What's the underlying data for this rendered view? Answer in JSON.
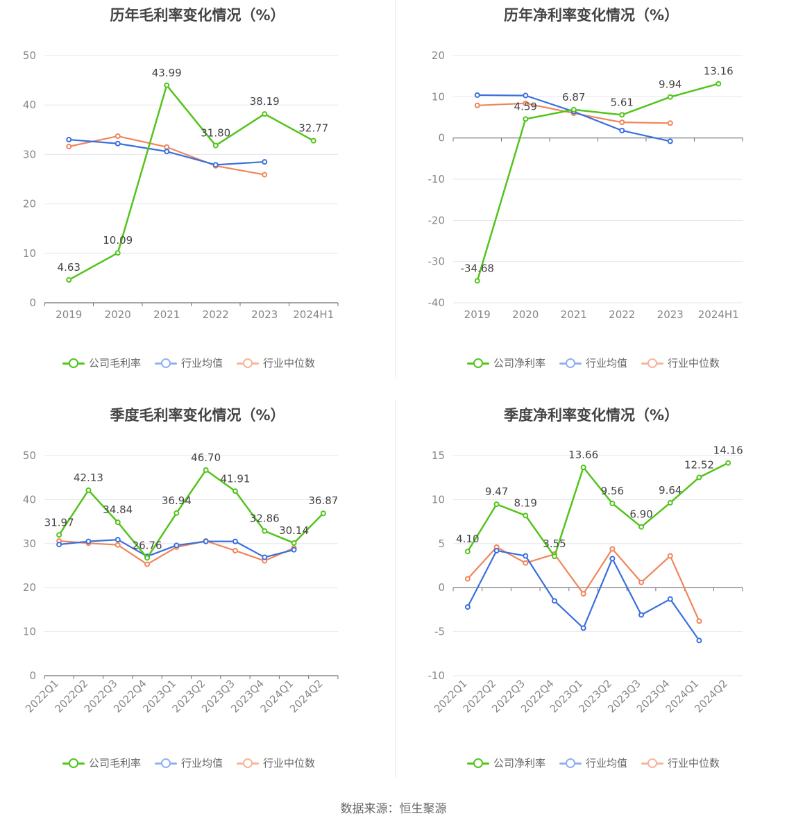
{
  "footer": "数据来源：恒生聚源",
  "colors": {
    "company": "#52c41a",
    "avg": "#3a6fdc",
    "median": "#f0855a"
  },
  "chart_data": [
    {
      "type": "line",
      "title": "历年毛利率变化情况（%）",
      "categories": [
        "2019",
        "2020",
        "2021",
        "2022",
        "2023",
        "2024H1"
      ],
      "ylim": [
        0,
        50
      ],
      "yticks": [
        0,
        10,
        20,
        30,
        40,
        50
      ],
      "series": [
        {
          "name": "公司毛利率",
          "values": [
            4.63,
            10.09,
            43.99,
            31.8,
            38.19,
            32.77
          ],
          "labels": [
            "4.63",
            "10.09",
            "43.99",
            "31.80",
            "38.19",
            "32.77"
          ]
        },
        {
          "name": "行业均值",
          "values": [
            33.0,
            32.2,
            30.6,
            27.9,
            28.5,
            null
          ]
        },
        {
          "name": "行业中位数",
          "values": [
            31.6,
            33.7,
            31.5,
            27.7,
            25.9,
            null
          ]
        }
      ]
    },
    {
      "type": "line",
      "title": "历年净利率变化情况（%）",
      "categories": [
        "2019",
        "2020",
        "2021",
        "2022",
        "2023",
        "2024H1"
      ],
      "ylim": [
        -40,
        20
      ],
      "yticks": [
        -40,
        -30,
        -20,
        -10,
        0,
        10,
        20
      ],
      "series": [
        {
          "name": "公司净利率",
          "values": [
            -34.68,
            4.59,
            6.87,
            5.61,
            9.94,
            13.16
          ],
          "labels": [
            "-34.68",
            "4.59",
            "6.87",
            "5.61",
            "9.94",
            "13.16"
          ]
        },
        {
          "name": "行业均值",
          "values": [
            10.4,
            10.3,
            6.4,
            1.8,
            -0.8,
            null
          ]
        },
        {
          "name": "行业中位数",
          "values": [
            7.9,
            8.4,
            6.0,
            3.8,
            3.6,
            null
          ]
        }
      ]
    },
    {
      "type": "line",
      "title": "季度毛利率变化情况（%）",
      "categories": [
        "2022Q1",
        "2022Q2",
        "2022Q3",
        "2022Q4",
        "2023Q1",
        "2023Q2",
        "2023Q3",
        "2023Q4",
        "2024Q1",
        "2024Q2"
      ],
      "ylim": [
        0,
        50
      ],
      "yticks": [
        0,
        10,
        20,
        30,
        40,
        50
      ],
      "series": [
        {
          "name": "公司毛利率",
          "values": [
            31.97,
            42.13,
            34.84,
            26.76,
            36.94,
            46.7,
            41.91,
            32.86,
            30.14,
            36.87
          ],
          "labels": [
            "31.97",
            "42.13",
            "34.84",
            "26.76",
            "36.94",
            "46.70",
            "41.91",
            "32.86",
            "30.14",
            "36.87"
          ]
        },
        {
          "name": "行业均值",
          "values": [
            29.8,
            30.5,
            30.9,
            27.1,
            29.6,
            30.5,
            30.5,
            26.9,
            28.6,
            null
          ]
        },
        {
          "name": "行业中位数",
          "values": [
            30.6,
            30.1,
            29.7,
            25.3,
            29.2,
            30.6,
            28.4,
            26.1,
            29.0,
            null
          ]
        }
      ]
    },
    {
      "type": "line",
      "title": "季度净利率变化情况（%）",
      "categories": [
        "2022Q1",
        "2022Q2",
        "2022Q3",
        "2022Q4",
        "2023Q1",
        "2023Q2",
        "2023Q3",
        "2023Q4",
        "2024Q1",
        "2024Q2"
      ],
      "ylim": [
        -10,
        15
      ],
      "yticks": [
        -10,
        -5,
        0,
        5,
        10,
        15
      ],
      "series": [
        {
          "name": "公司净利率",
          "values": [
            4.1,
            9.47,
            8.19,
            3.55,
            13.66,
            9.56,
            6.9,
            9.64,
            12.52,
            14.16
          ],
          "labels": [
            "4.10",
            "9.47",
            "8.19",
            "3.55",
            "13.66",
            "9.56",
            "6.90",
            "9.64",
            "12.52",
            "14.16"
          ]
        },
        {
          "name": "行业均值",
          "values": [
            -2.2,
            4.2,
            3.6,
            -1.5,
            -4.6,
            3.3,
            -3.1,
            -1.3,
            -6.0,
            null
          ]
        },
        {
          "name": "行业中位数",
          "values": [
            1.0,
            4.6,
            2.8,
            3.8,
            -0.7,
            4.4,
            0.6,
            3.6,
            -3.8,
            null
          ]
        }
      ]
    }
  ]
}
